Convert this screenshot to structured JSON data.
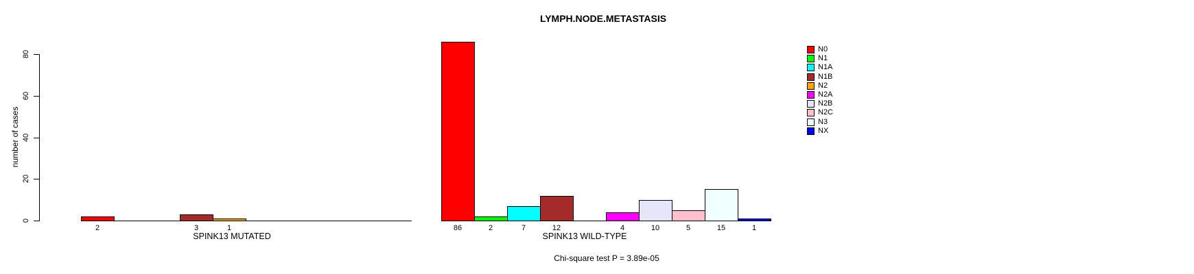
{
  "title": "LYMPH.NODE.METASTASIS",
  "footnote": "Chi-square test P = 3.89e-05",
  "y_axis": {
    "label": "number of cases",
    "ticks": [
      0,
      20,
      40,
      60,
      80
    ]
  },
  "legend": {
    "items": [
      {
        "label": "N0",
        "color": "#FF0000"
      },
      {
        "label": "N1",
        "color": "#00FF00"
      },
      {
        "label": "N1A",
        "color": "#00FFFF"
      },
      {
        "label": "N1B",
        "color": "#A52A2A"
      },
      {
        "label": "N2",
        "color": "#FFA500"
      },
      {
        "label": "N2A",
        "color": "#FF00FF"
      },
      {
        "label": "N2B",
        "color": "#E6E6FA"
      },
      {
        "label": "N2C",
        "color": "#FFC0CB"
      },
      {
        "label": "N3",
        "color": "#F0FFFF"
      },
      {
        "label": "NX",
        "color": "#0000FF"
      }
    ]
  },
  "chart_data": {
    "type": "bar",
    "title": "LYMPH.NODE.METASTASIS",
    "ylabel": "number of cases",
    "ylim": [
      0,
      86
    ],
    "yticks": [
      0,
      20,
      40,
      60,
      80
    ],
    "grid": false,
    "legend_position": "right",
    "categories": [
      "N0",
      "N1",
      "N1A",
      "N1B",
      "N2",
      "N2A",
      "N2B",
      "N2C",
      "N3",
      "NX"
    ],
    "colors": [
      "#FF0000",
      "#00FF00",
      "#00FFFF",
      "#A52A2A",
      "#FFA500",
      "#FF00FF",
      "#E6E6FA",
      "#FFC0CB",
      "#F0FFFF",
      "#0000FF"
    ],
    "series": [
      {
        "name": "SPINK13 MUTATED",
        "values": [
          2,
          0,
          0,
          3,
          1,
          0,
          0,
          0,
          0,
          0
        ]
      },
      {
        "name": "SPINK13 WILD-TYPE",
        "values": [
          86,
          2,
          7,
          12,
          0,
          4,
          10,
          5,
          15,
          1
        ]
      }
    ],
    "annotation": "Chi-square test P = 3.89e-05"
  }
}
